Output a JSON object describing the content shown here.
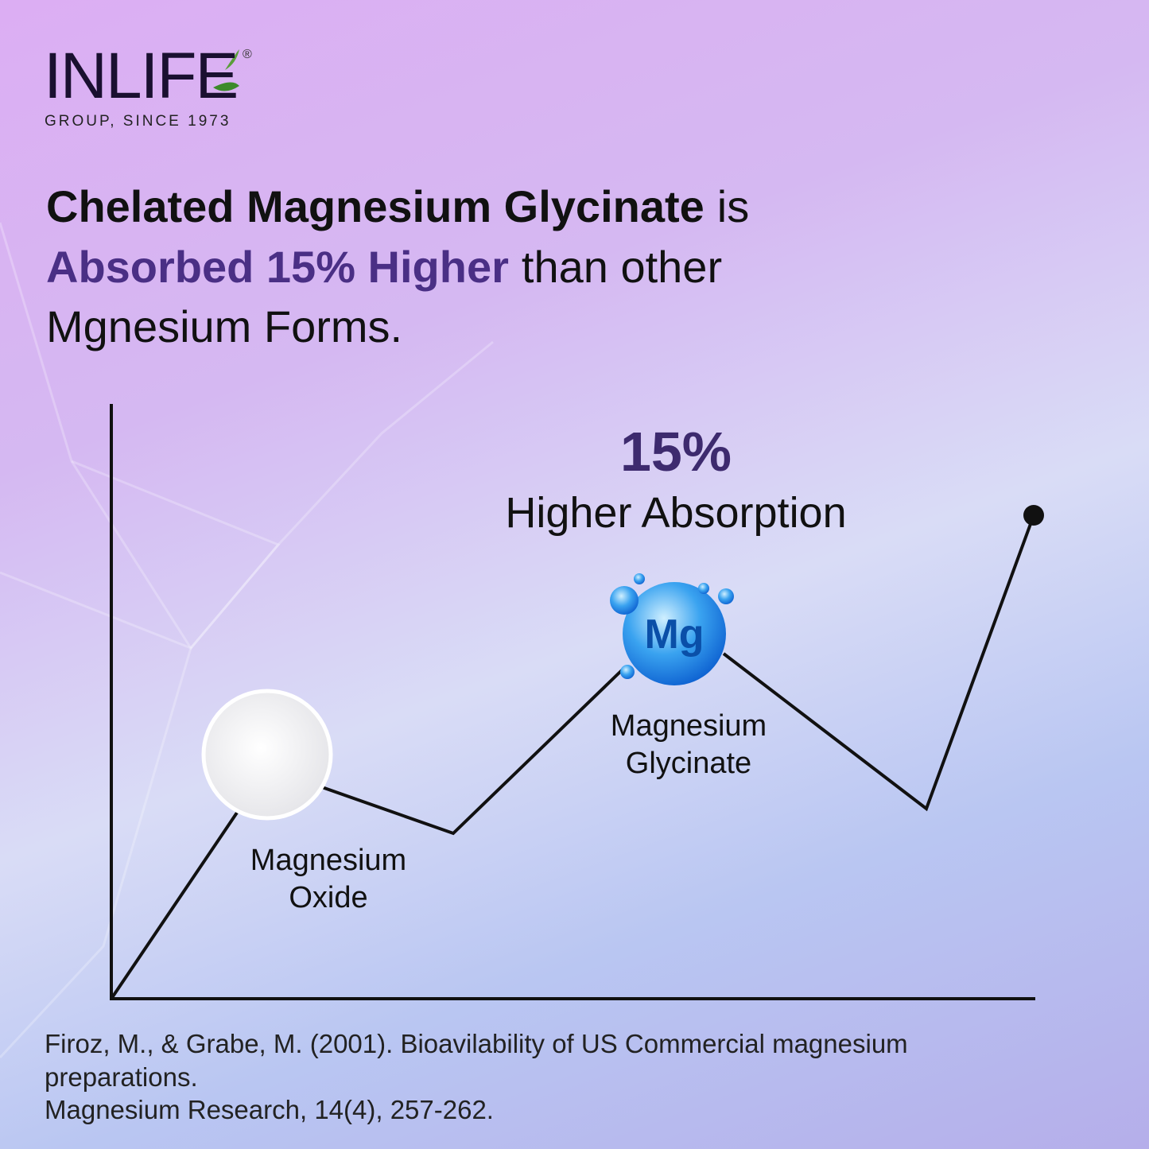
{
  "logo": {
    "brand": "INLIFE",
    "registered": "®",
    "tagline": "GROUP, SINCE 1973"
  },
  "headline": {
    "line1": {
      "emphasis": "Chelated Magnesium Glycinate",
      "rest": "is"
    },
    "line2": {
      "emphasis": "Absorbed 15% Higher",
      "rest": "than other"
    },
    "line3": "Mgnesium Forms."
  },
  "callout": {
    "figure": "15%",
    "caption": "Higher Absorption"
  },
  "points": [
    {
      "label": [
        "Magnesium",
        "Oxide"
      ]
    },
    {
      "icon": "Mg",
      "label": [
        "Magnesium",
        "Glycinate"
      ]
    }
  ],
  "citation": [
    "Firoz, M., & Grabe, M. (2001). Bioavilability of US Commercial magnesium",
    "preparations.",
    "Magnesium Research, 14(4), 257-262."
  ]
}
